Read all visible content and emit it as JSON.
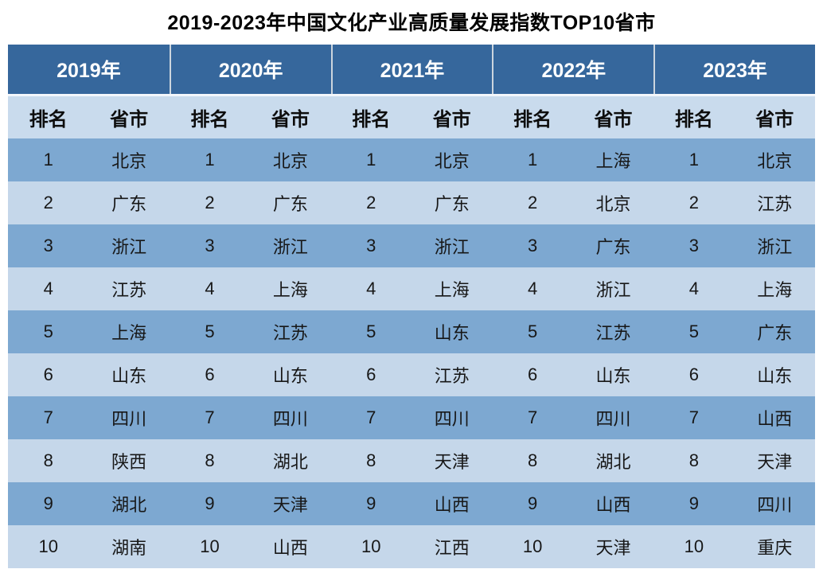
{
  "title": "2019-2023年中国文化产业高质量发展指数TOP10省市",
  "colors": {
    "header_bg": "#36679c",
    "subheader_bg": "#c9dbed",
    "row_odd_bg": "#7da8d1",
    "row_even_bg": "#c5d7ea",
    "header_text": "#ffffff",
    "body_text": "#171717",
    "page_bg": "#ffffff"
  },
  "chart_data": {
    "type": "table",
    "title": "2019-2023年中国文化产业高质量发展指数TOP10省市",
    "subheaders": {
      "rank": "排名",
      "province": "省市"
    },
    "ranks": [
      "1",
      "2",
      "3",
      "4",
      "5",
      "6",
      "7",
      "8",
      "9",
      "10"
    ],
    "series": [
      {
        "year": "2019年",
        "top10": [
          "北京",
          "广东",
          "浙江",
          "江苏",
          "上海",
          "山东",
          "四川",
          "陕西",
          "湖北",
          "湖南"
        ]
      },
      {
        "year": "2020年",
        "top10": [
          "北京",
          "广东",
          "浙江",
          "上海",
          "江苏",
          "山东",
          "四川",
          "湖北",
          "天津",
          "山西"
        ]
      },
      {
        "year": "2021年",
        "top10": [
          "北京",
          "广东",
          "浙江",
          "上海",
          "山东",
          "江苏",
          "四川",
          "天津",
          "山西",
          "江西"
        ]
      },
      {
        "year": "2022年",
        "top10": [
          "上海",
          "北京",
          "广东",
          "浙江",
          "江苏",
          "山东",
          "四川",
          "湖北",
          "山西",
          "天津"
        ]
      },
      {
        "year": "2023年",
        "top10": [
          "北京",
          "江苏",
          "浙江",
          "上海",
          "广东",
          "山东",
          "山西",
          "天津",
          "四川",
          "重庆"
        ]
      }
    ]
  }
}
